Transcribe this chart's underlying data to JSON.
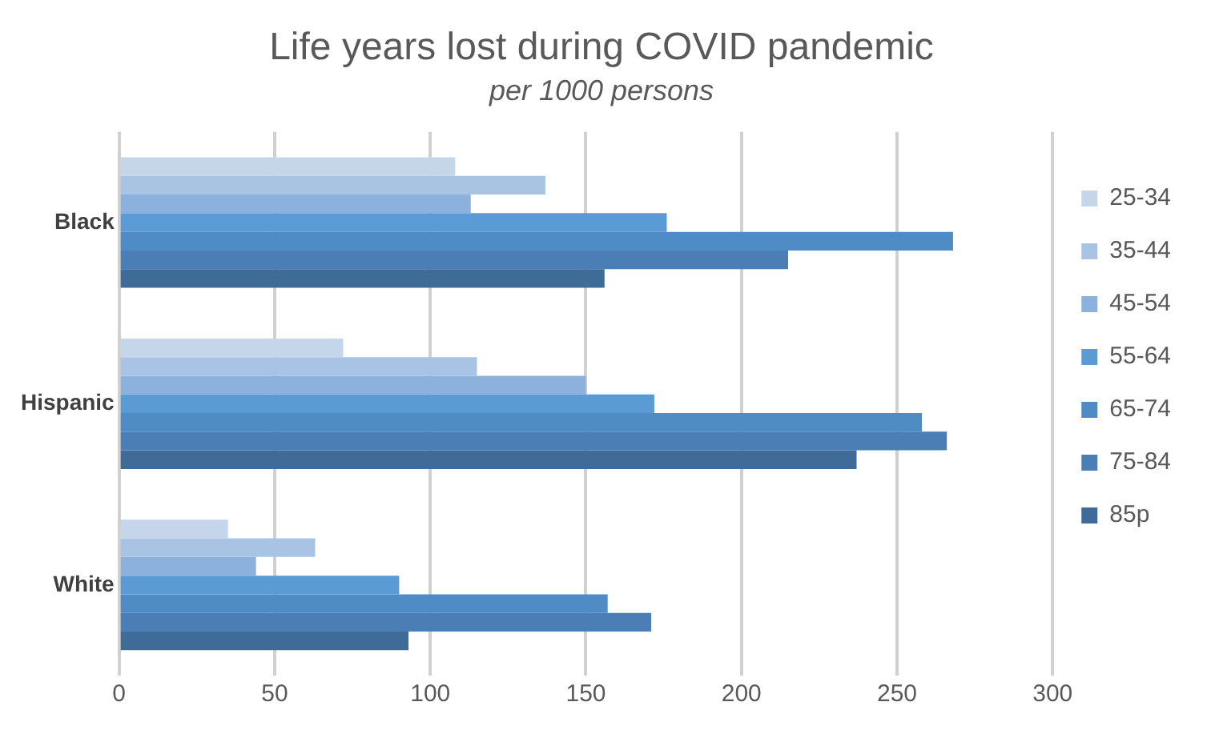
{
  "chart_data": {
    "type": "bar",
    "orientation": "horizontal",
    "title": "Life years lost during COVID pandemic",
    "subtitle": "per 1000 persons",
    "categories": [
      "Black",
      "Hispanic",
      "White"
    ],
    "series": [
      {
        "name": "25-34",
        "color": "#c5d5ea",
        "values": [
          108,
          72,
          35
        ]
      },
      {
        "name": "35-44",
        "color": "#a9c3e5",
        "values": [
          137,
          115,
          63
        ]
      },
      {
        "name": "45-54",
        "color": "#8cb1dd",
        "values": [
          113,
          150,
          44
        ]
      },
      {
        "name": "55-64",
        "color": "#5b9bd5",
        "values": [
          176,
          172,
          90
        ]
      },
      {
        "name": "65-74",
        "color": "#4f8cc6",
        "values": [
          268,
          258,
          157
        ]
      },
      {
        "name": "75-84",
        "color": "#4a7eb4",
        "values": [
          215,
          266,
          171
        ]
      },
      {
        "name": "85p",
        "color": "#3f6b99",
        "values": [
          156,
          237,
          93
        ]
      }
    ],
    "xlim": [
      0,
      300
    ],
    "xticks": [
      0,
      50,
      100,
      150,
      200,
      250,
      300
    ],
    "grid": "x",
    "legend": "right"
  }
}
